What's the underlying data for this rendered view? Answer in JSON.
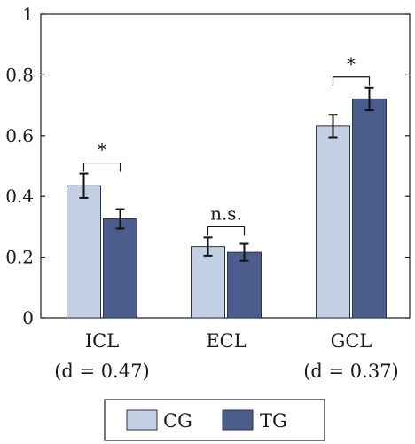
{
  "chart_data": {
    "type": "bar",
    "title": "",
    "xlabel": "",
    "ylabel": "",
    "ylim": [
      0,
      1
    ],
    "yticks": [
      "0",
      "0.2",
      "0.4",
      "0.6",
      "0.8",
      "1"
    ],
    "categories": [
      "ICL",
      "ECL",
      "GCL"
    ],
    "effect_sizes": [
      "(d = 0.47)",
      "",
      "(d = 0.37)"
    ],
    "series": [
      {
        "name": "CG",
        "values": [
          0.435,
          0.235,
          0.632
        ],
        "errors": [
          0.04,
          0.03,
          0.037
        ],
        "color": "#c3cfe2"
      },
      {
        "name": "TG",
        "values": [
          0.326,
          0.216,
          0.721
        ],
        "errors": [
          0.032,
          0.028,
          0.037
        ],
        "color": "#4a5d8c"
      }
    ],
    "significance": [
      "*",
      "n.s.",
      "*"
    ],
    "grid": false,
    "legend_position": "bottom-center"
  }
}
